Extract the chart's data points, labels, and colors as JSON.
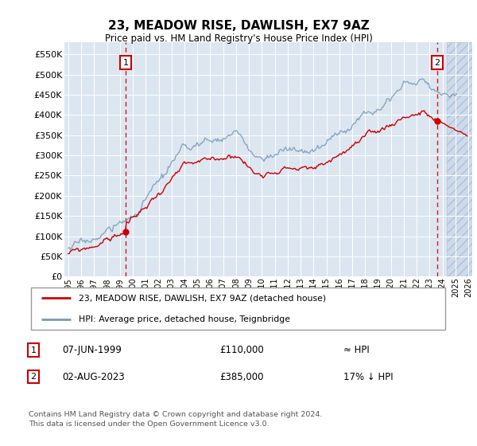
{
  "title": "23, MEADOW RISE, DAWLISH, EX7 9AZ",
  "subtitle": "Price paid vs. HM Land Registry's House Price Index (HPI)",
  "ylabel_ticks": [
    "£0",
    "£50K",
    "£100K",
    "£150K",
    "£200K",
    "£250K",
    "£300K",
    "£350K",
    "£400K",
    "£450K",
    "£500K",
    "£550K"
  ],
  "ylabel_values": [
    0,
    50000,
    100000,
    150000,
    200000,
    250000,
    300000,
    350000,
    400000,
    450000,
    500000,
    550000
  ],
  "ylim": [
    0,
    580000
  ],
  "xlim_start": 1994.7,
  "xlim_end": 2026.3,
  "xticks": [
    1995,
    1996,
    1997,
    1998,
    1999,
    2000,
    2001,
    2002,
    2003,
    2004,
    2005,
    2006,
    2007,
    2008,
    2009,
    2010,
    2011,
    2012,
    2013,
    2014,
    2015,
    2016,
    2017,
    2018,
    2019,
    2020,
    2021,
    2022,
    2023,
    2024,
    2025,
    2026
  ],
  "bg_color": "#dce6f1",
  "grid_color": "#ffffff",
  "line_color_red": "#cc0000",
  "line_color_blue": "#7799bb",
  "sale1_year": 1999.44,
  "sale1_value": 110000,
  "sale2_year": 2023.58,
  "sale2_value": 385000,
  "legend_line1": "23, MEADOW RISE, DAWLISH, EX7 9AZ (detached house)",
  "legend_line2": "HPI: Average price, detached house, Teignbridge",
  "note1_date": "07-JUN-1999",
  "note1_price": "£110,000",
  "note1_hpi": "≈ HPI",
  "note2_date": "02-AUG-2023",
  "note2_price": "£385,000",
  "note2_hpi": "17% ↓ HPI",
  "footer": "Contains HM Land Registry data © Crown copyright and database right 2024.\nThis data is licensed under the Open Government Licence v3.0.",
  "hatch_start_year": 2024.33
}
